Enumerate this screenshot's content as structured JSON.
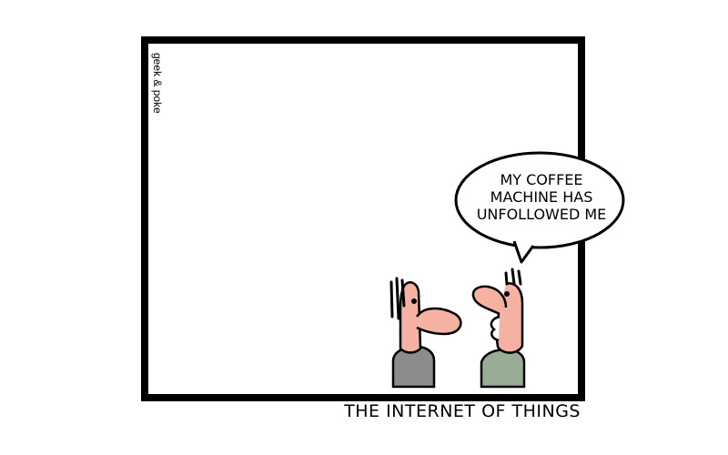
{
  "comic": {
    "signature": "geek & poke",
    "speech_lines": [
      "MY COFFEE",
      "MACHINE HAS",
      "UNFOLLOWED ME"
    ],
    "caption": "THE INTERNET OF THINGS"
  },
  "colors": {
    "frame": "#000000",
    "skin": "#f5b2a2",
    "left_shirt": "#8c8c8c",
    "right_shirt": "#97ae94",
    "background": "#ffffff"
  }
}
